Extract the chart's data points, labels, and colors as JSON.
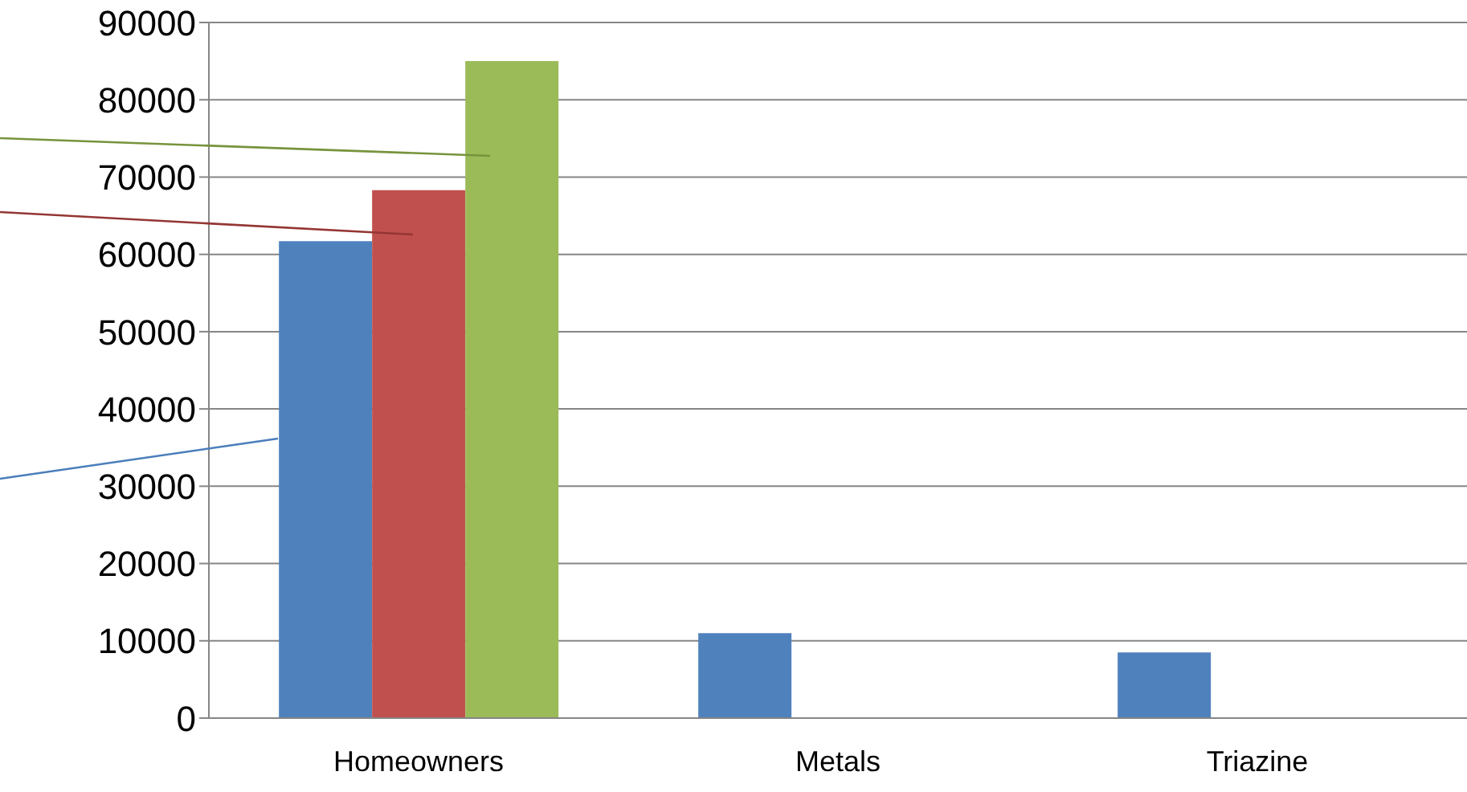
{
  "chart_data": {
    "type": "bar",
    "categories": [
      "Homeowners",
      "Metals",
      "Triazine"
    ],
    "series": [
      {
        "color": "#4f81bd",
        "values": [
          61700,
          11000,
          8500
        ]
      },
      {
        "color": "#c0504d",
        "values": [
          68300,
          null,
          null
        ]
      },
      {
        "color": "#9bbb59",
        "values": [
          85000,
          null,
          null
        ]
      }
    ],
    "ylim": [
      0,
      90000
    ],
    "yticks": [
      0,
      10000,
      20000,
      30000,
      40000,
      50000,
      60000,
      70000,
      80000,
      90000
    ],
    "grid": "y",
    "legend": false
  }
}
